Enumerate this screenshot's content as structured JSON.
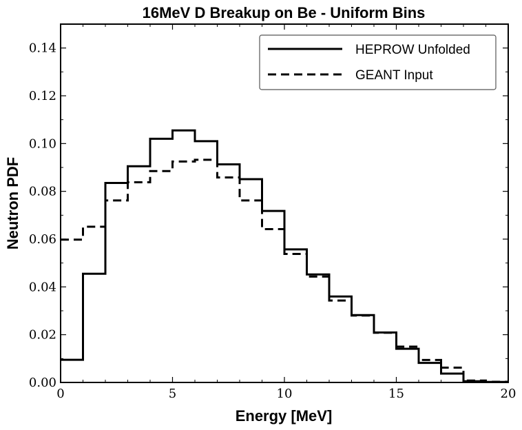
{
  "chart_data": {
    "type": "line",
    "title": "16MeV D Breakup on Be - Uniform Bins",
    "xlabel": "Energy [MeV]",
    "ylabel": "Neutron PDF",
    "xlim": [
      0,
      20
    ],
    "ylim": [
      0,
      0.15
    ],
    "grid": false,
    "legend_position": "top-right",
    "xticks": [
      "0",
      "5",
      "10",
      "15",
      "20"
    ],
    "yticks": [
      "0.00",
      "0.02",
      "0.04",
      "0.06",
      "0.08",
      "0.10",
      "0.12",
      "0.14"
    ],
    "bin_edges": [
      0,
      1,
      2,
      3,
      4,
      5,
      6,
      7,
      8,
      9,
      10,
      11,
      12,
      13,
      14,
      15,
      16,
      17,
      18,
      19,
      20
    ],
    "series": [
      {
        "name": "HEPROW Unfolded",
        "style": "solid",
        "values": [
          0.0095,
          0.0455,
          0.0835,
          0.0905,
          0.102,
          0.1055,
          0.101,
          0.0913,
          0.0851,
          0.0718,
          0.0557,
          0.0452,
          0.036,
          0.0282,
          0.0209,
          0.0141,
          0.0082,
          0.0037,
          0.0005,
          0.0002
        ]
      },
      {
        "name": "GEANT Input",
        "style": "dashed",
        "values": [
          0.0598,
          0.0652,
          0.0762,
          0.0838,
          0.0885,
          0.0925,
          0.0932,
          0.0858,
          0.0762,
          0.0642,
          0.0538,
          0.0443,
          0.0343,
          0.028,
          0.0208,
          0.015,
          0.0094,
          0.0062,
          0.0008,
          0.0003
        ]
      }
    ],
    "colors": {
      "line": "#000000",
      "background": "#ffffff",
      "legend_border": "#555555"
    }
  }
}
